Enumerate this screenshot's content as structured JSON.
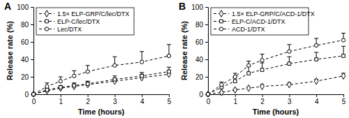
{
  "chart_data": [
    {
      "type": "line",
      "title": "A",
      "xlabel": "Time (hours)",
      "ylabel": "Release rate (%)",
      "x": [
        0,
        0.5,
        1,
        1.5,
        2,
        3,
        4,
        5
      ],
      "xlim": [
        0,
        5
      ],
      "xticks": [
        0,
        1,
        2,
        3,
        4,
        5
      ],
      "ylim": [
        0,
        100
      ],
      "yticks": [
        0,
        20,
        40,
        60,
        80,
        100
      ],
      "grid": false,
      "legend": "upper left",
      "series": [
        {
          "name": "1.5× ELP-GRP/C/lec/DTX",
          "color": "#000000",
          "marker": "diamond",
          "line_style": "dashed",
          "values": [
            0,
            4,
            7,
            9,
            11,
            15,
            19,
            23
          ],
          "errors": [
            0,
            1,
            2,
            2,
            3,
            3,
            4,
            4
          ]
        },
        {
          "name": "ELP-C/lec/DTX",
          "color": "#000000",
          "marker": "square",
          "line_style": "dashed",
          "values": [
            0,
            5,
            8,
            10,
            12,
            17,
            21,
            26
          ],
          "errors": [
            0,
            2,
            2,
            3,
            3,
            4,
            4,
            5
          ]
        },
        {
          "name": "Lec/DTX",
          "color": "#000000",
          "marker": "circle",
          "line_style": "dashed",
          "values": [
            0,
            9,
            15,
            21,
            26,
            33,
            37,
            44
          ],
          "errors": [
            0,
            4,
            5,
            6,
            7,
            10,
            12,
            13
          ]
        }
      ]
    },
    {
      "type": "line",
      "title": "B",
      "xlabel": "Time (hours)",
      "ylabel": "Release rate (%)",
      "x": [
        0,
        0.5,
        1,
        1.5,
        2,
        3,
        4,
        5
      ],
      "xlim": [
        0,
        5
      ],
      "xticks": [
        0,
        1,
        2,
        3,
        4,
        5
      ],
      "ylim": [
        0,
        100
      ],
      "yticks": [
        0,
        20,
        40,
        60,
        80,
        100
      ],
      "grid": false,
      "legend": "upper left",
      "series": [
        {
          "name": "1.5× ELP-GRP/C/ACD-1/DTX",
          "color": "#000000",
          "marker": "diamond",
          "line_style": "dashed",
          "values": [
            0,
            2,
            5,
            7,
            9,
            11,
            15,
            21
          ],
          "errors": [
            0,
            1,
            1,
            1,
            2,
            2,
            2,
            3
          ]
        },
        {
          "name": "ELP-C/ACD-1/DTX",
          "color": "#000000",
          "marker": "square",
          "line_style": "dashed",
          "values": [
            0,
            8,
            15,
            24,
            28,
            35,
            40,
            44
          ],
          "errors": [
            0,
            3,
            5,
            8,
            8,
            8,
            8,
            11
          ]
        },
        {
          "name": "ACD-1/DTX",
          "color": "#000000",
          "marker": "circle",
          "line_style": "dashed",
          "values": [
            0,
            11,
            20,
            33,
            39,
            49,
            56,
            62
          ],
          "errors": [
            0,
            3,
            4,
            5,
            7,
            8,
            8,
            8
          ]
        }
      ]
    }
  ]
}
